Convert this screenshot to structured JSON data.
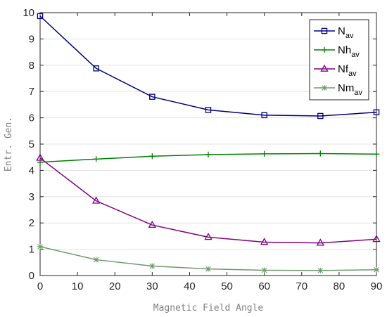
{
  "chart_data": {
    "type": "line",
    "xlabel": "Magnetic Field Angle",
    "ylabel": "Entr. Gen.",
    "xlim": [
      0,
      90
    ],
    "ylim": [
      0,
      10
    ],
    "xticks": [
      0,
      10,
      20,
      30,
      40,
      50,
      60,
      70,
      80,
      90
    ],
    "yticks": [
      0,
      1,
      2,
      3,
      4,
      5,
      6,
      7,
      8,
      9,
      10
    ],
    "grid": "horizontal",
    "legend_position": "top-right",
    "x": [
      0,
      15,
      30,
      45,
      60,
      75,
      90
    ],
    "series": [
      {
        "name": "N",
        "sub": "av",
        "marker": "square",
        "color": "#000080",
        "values": [
          9.87,
          7.88,
          6.8,
          6.3,
          6.1,
          6.07,
          6.21
        ]
      },
      {
        "name": "Nh",
        "sub": "av",
        "marker": "plus",
        "color": "#008000",
        "values": [
          4.31,
          4.43,
          4.54,
          4.6,
          4.63,
          4.64,
          4.62
        ]
      },
      {
        "name": "Nf",
        "sub": "av",
        "marker": "triangle",
        "color": "#800080",
        "values": [
          4.47,
          2.84,
          1.92,
          1.46,
          1.27,
          1.24,
          1.38
        ]
      },
      {
        "name": "Nm",
        "sub": "av",
        "marker": "asterisk",
        "color": "#6b9a6b",
        "values": [
          1.1,
          0.6,
          0.36,
          0.25,
          0.2,
          0.19,
          0.22
        ]
      }
    ]
  }
}
